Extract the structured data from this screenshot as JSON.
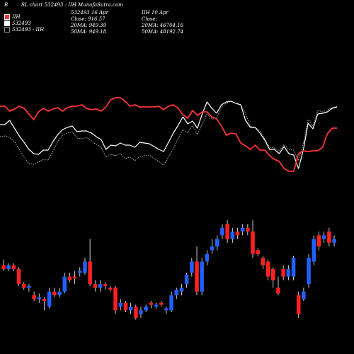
{
  "header": {
    "corner_letter": "B",
    "title": "SL chart 532493 : IIH MunafaSutra.com",
    "col2": [
      "532493 16 Apr",
      "Close: 916.57",
      "20MA: 949.39",
      "50MA: 949.18"
    ],
    "col3": [
      "IIH 10 Apr",
      "Close:",
      "20MA: 46704.16",
      "50MA: 48192.74"
    ]
  },
  "legend": [
    {
      "label": "IIH",
      "color": "#ff3333"
    },
    {
      "label": "532493",
      "color": "#ffffff"
    },
    {
      "label": "532493 - IIH",
      "color": "#888888"
    }
  ],
  "colors": {
    "up": "#2060ff",
    "down": "#ff2020",
    "red_line": "#ff3333",
    "white_line": "#ffffff",
    "dotted_line": "#aaaaaa",
    "background": "#000000"
  },
  "chart_data": {
    "type": "line",
    "grid": false,
    "series_lines": {
      "red": [
        150,
        150,
        157,
        154,
        150,
        153,
        161,
        169,
        158,
        153,
        157,
        154,
        152,
        157,
        152,
        150,
        150,
        148,
        153,
        155,
        154,
        157,
        151,
        141,
        138,
        138,
        143,
        150,
        148,
        151,
        151,
        151,
        151,
        150,
        155,
        150,
        148,
        153,
        162,
        167,
        156,
        163,
        158,
        158,
        165,
        168,
        178,
        191,
        188,
        189,
        202,
        206,
        211,
        205,
        212,
        212,
        220,
        225,
        228,
        238,
        242,
        242,
        217,
        213,
        214,
        213,
        213,
        208,
        189,
        181,
        181
      ],
      "white": [
        176,
        176,
        170,
        181,
        192,
        201,
        211,
        217,
        218,
        212,
        212,
        200,
        190,
        183,
        180,
        178,
        186,
        185,
        185,
        188,
        193,
        197,
        211,
        205,
        206,
        202,
        205,
        205,
        208,
        201,
        202,
        203,
        207,
        211,
        214,
        201,
        188,
        177,
        165,
        175,
        171,
        181,
        161,
        144,
        153,
        160,
        148,
        144,
        143,
        146,
        148,
        170,
        180,
        180,
        188,
        198,
        211,
        211,
        217,
        207,
        217,
        219,
        238,
        212,
        174,
        182,
        161,
        160,
        158,
        153,
        151
      ],
      "dotted": [
        193,
        192,
        194,
        200,
        211,
        222,
        231,
        232,
        229,
        225,
        226,
        214,
        200,
        191,
        188,
        186,
        195,
        196,
        194,
        199,
        204,
        208,
        222,
        218,
        220,
        217,
        224,
        222,
        227,
        221,
        220,
        219,
        224,
        228,
        233,
        222,
        210,
        196,
        183,
        188,
        177,
        190,
        175,
        161,
        168,
        167,
        151,
        146,
        143,
        146,
        148,
        160,
        178,
        180,
        185,
        196,
        208,
        209,
        213,
        204,
        211,
        212,
        227,
        203,
        169,
        178,
        156,
        158,
        155,
        152,
        150
      ]
    },
    "candles": [
      {
        "o": 1,
        "c": 0,
        "h": 2.5,
        "l": -0.5
      },
      {
        "o": 0,
        "c": 1,
        "h": 1.5,
        "l": -0.5
      },
      {
        "o": 1,
        "c": 0,
        "h": 1.5,
        "l": -0.5
      },
      {
        "o": 0,
        "c": -4,
        "h": 0.5,
        "l": -4.5
      },
      {
        "o": -4,
        "c": -5,
        "h": -3.5,
        "l": -5.5
      },
      {
        "o": -5,
        "c": -4.5,
        "h": -4,
        "l": -6
      },
      {
        "o": -7,
        "c": -8,
        "h": -6,
        "l": -8.5
      },
      {
        "o": -8,
        "c": -7.5,
        "h": -6.5,
        "l": -9
      },
      {
        "o": -8,
        "c": -8.5,
        "h": -7.5,
        "l": -11
      },
      {
        "o": -10,
        "c": -6,
        "h": -5,
        "l": -10.5
      },
      {
        "o": -6,
        "c": -7,
        "h": -5,
        "l": -7.5
      },
      {
        "o": -7,
        "c": -6,
        "h": -5,
        "l": -7.5
      },
      {
        "o": -6,
        "c": -2,
        "h": -1,
        "l": -6.5
      },
      {
        "o": -2,
        "c": -3,
        "h": -1,
        "l": -3.5
      },
      {
        "o": -2,
        "c": -2.5,
        "h": -0.5,
        "l": -4
      },
      {
        "o": -1,
        "c": -0.5,
        "h": 0.5,
        "l": -2
      },
      {
        "o": -1,
        "c": 2,
        "h": 3,
        "l": -1.5
      },
      {
        "o": 2,
        "c": -4,
        "h": 8,
        "l": -4.5
      },
      {
        "o": -4,
        "c": -5,
        "h": -3,
        "l": -6
      },
      {
        "o": -5,
        "c": -4,
        "h": -3,
        "l": -6
      },
      {
        "o": -4,
        "c": -4.5,
        "h": -3.5,
        "l": -5.5
      },
      {
        "o": -5,
        "c": -5.5,
        "h": -4.5,
        "l": -6
      },
      {
        "o": -5,
        "c": -11,
        "h": -4.5,
        "l": -12
      },
      {
        "o": -10,
        "c": -9,
        "h": -8,
        "l": -11
      },
      {
        "o": -9,
        "c": -11,
        "h": -8.5,
        "l": -11.5
      },
      {
        "o": -11,
        "c": -10,
        "h": -9,
        "l": -12
      },
      {
        "o": -10,
        "c": -13,
        "h": -9.5,
        "l": -13.5
      },
      {
        "o": -12,
        "c": -11,
        "h": -10,
        "l": -13
      },
      {
        "o": -11,
        "c": -10,
        "h": -9.5,
        "l": -11.5
      },
      {
        "o": -9,
        "c": -9.5,
        "h": -8.5,
        "l": -10.5
      },
      {
        "o": -10,
        "c": -9.5,
        "h": -9,
        "l": -10.5
      },
      {
        "o": -9,
        "c": -9.5,
        "h": -8.5,
        "l": -10
      },
      {
        "o": -11,
        "c": -10.5,
        "h": -10,
        "l": -12
      },
      {
        "o": -11,
        "c": -7,
        "h": -6,
        "l": -11.5
      },
      {
        "o": -7,
        "c": -5.5,
        "h": -5,
        "l": -8
      },
      {
        "o": -6,
        "c": -5,
        "h": -4,
        "l": -7
      },
      {
        "o": -4,
        "c": -1.5,
        "h": -1,
        "l": -5
      },
      {
        "o": -1,
        "c": 2,
        "h": 3,
        "l": -2
      },
      {
        "o": 2,
        "c": -6,
        "h": 6,
        "l": -7
      },
      {
        "o": -6,
        "c": 2,
        "h": 3,
        "l": -7
      },
      {
        "o": 2,
        "c": 4,
        "h": 5,
        "l": 1
      },
      {
        "o": 5,
        "c": 6,
        "h": 8,
        "l": 4
      },
      {
        "o": 6,
        "c": 8,
        "h": 9,
        "l": 5
      },
      {
        "o": 9,
        "c": 11,
        "h": 12,
        "l": 8
      },
      {
        "o": 12,
        "c": 8,
        "h": 13,
        "l": 7
      },
      {
        "o": 8,
        "c": 10,
        "h": 11,
        "l": 7
      },
      {
        "o": 10,
        "c": 9,
        "h": 11,
        "l": 8
      },
      {
        "o": 10,
        "c": 11,
        "h": 12,
        "l": 9
      },
      {
        "o": 11,
        "c": 10,
        "h": 12,
        "l": 9
      },
      {
        "o": 10,
        "c": 4,
        "h": 13,
        "l": 3
      },
      {
        "o": 5,
        "c": 4,
        "h": 5.5,
        "l": 3.5
      },
      {
        "o": 3,
        "c": 1,
        "h": 3.5,
        "l": 0
      },
      {
        "o": 2,
        "c": -2,
        "h": 2.5,
        "l": -3
      },
      {
        "o": 0,
        "c": -3,
        "h": 0.5,
        "l": -5
      },
      {
        "o": -5,
        "c": -6.5,
        "h": -2,
        "l": -7
      },
      {
        "o": 0,
        "c": -2,
        "h": 1,
        "l": -3
      },
      {
        "o": -2,
        "c": 0,
        "h": 1,
        "l": -3
      },
      {
        "o": -2,
        "c": 3,
        "h": 3.5,
        "l": -3
      },
      {
        "o": -7,
        "c": -12,
        "h": -6,
        "l": -13
      },
      {
        "o": -8,
        "c": -6,
        "h": -5,
        "l": -8.5
      },
      {
        "o": -4,
        "c": 3,
        "h": 4,
        "l": -5
      },
      {
        "o": 2,
        "c": 8,
        "h": 9,
        "l": 1
      },
      {
        "o": 9,
        "c": 6,
        "h": 10,
        "l": 5
      },
      {
        "o": 8,
        "c": 9,
        "h": 10,
        "l": 7
      },
      {
        "o": 10,
        "c": 7,
        "h": 11,
        "l": 6
      },
      {
        "o": 7,
        "c": 8,
        "h": 9,
        "l": 6
      }
    ]
  }
}
